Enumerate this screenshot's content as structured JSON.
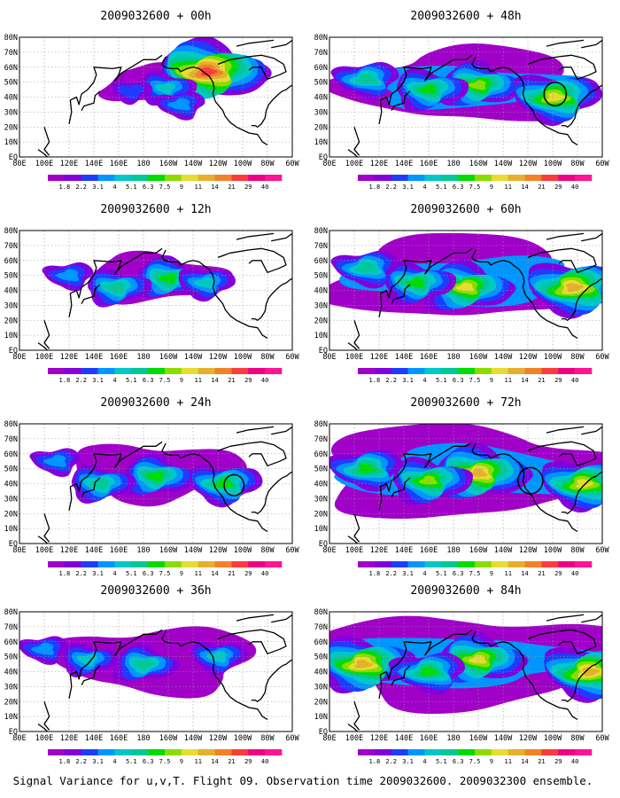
{
  "figure": {
    "caption": "Signal Variance for u,v,T. Flight 09. Observation time 2009032600. 2009032300 ensemble."
  },
  "colorbar": {
    "labels": [
      "1.8",
      "2.2",
      "3.1",
      "4",
      "5.1",
      "6.3",
      "7.5",
      "9",
      "11",
      "14",
      "21",
      "29",
      "40"
    ],
    "colors": [
      "#a000c8",
      "#8200dc",
      "#1e3cff",
      "#0096ff",
      "#00c8c8",
      "#00c896",
      "#00dc00",
      "#8cdc00",
      "#e6dc32",
      "#e6af2d",
      "#f08228",
      "#fa3c3c",
      "#f00082",
      "#ff1493"
    ]
  },
  "x_ticks": [
    "80E",
    "100E",
    "120E",
    "140E",
    "160E",
    "180",
    "160W",
    "140W",
    "120W",
    "100W",
    "80W",
    "60W"
  ],
  "y_ticks": [
    "80N",
    "70N",
    "60N",
    "50N",
    "40N",
    "30N",
    "20N",
    "10N",
    "EQ"
  ],
  "chart_data": [
    {
      "type": "heatmap",
      "title": "2009032600 + 00h",
      "valid_hour": 0,
      "xlim": [
        80,
        300
      ],
      "ylim": [
        0,
        80
      ],
      "regions": [
        {
          "lon": 232,
          "lat": 57,
          "level": 11
        },
        {
          "lon": 198,
          "lat": 46,
          "level": 4
        },
        {
          "lon": 170,
          "lat": 44,
          "level": 2
        },
        {
          "lon": 210,
          "lat": 35,
          "level": 3
        }
      ],
      "circles": []
    },
    {
      "type": "heatmap",
      "title": "2009032600 + 12h",
      "valid_hour": 12,
      "xlim": [
        80,
        300
      ],
      "ylim": [
        0,
        80
      ],
      "regions": [
        {
          "lon": 200,
          "lat": 48,
          "level": 6
        },
        {
          "lon": 158,
          "lat": 42,
          "level": 5
        },
        {
          "lon": 230,
          "lat": 45,
          "level": 4
        },
        {
          "lon": 120,
          "lat": 50,
          "level": 3
        }
      ],
      "circles": []
    },
    {
      "type": "heatmap",
      "title": "2009032600 + 24h",
      "valid_hour": 24,
      "xlim": [
        80,
        300
      ],
      "ylim": [
        0,
        80
      ],
      "regions": [
        {
          "lon": 190,
          "lat": 45,
          "level": 6
        },
        {
          "lon": 145,
          "lat": 40,
          "level": 5
        },
        {
          "lon": 245,
          "lat": 40,
          "level": 6
        },
        {
          "lon": 110,
          "lat": 55,
          "level": 3
        }
      ],
      "circles": [
        {
          "lon": 253,
          "lat": 39,
          "r_deg": 8
        }
      ]
    },
    {
      "type": "heatmap",
      "title": "2009032600 + 36h",
      "valid_hour": 36,
      "xlim": [
        80,
        300
      ],
      "ylim": [
        0,
        80
      ],
      "regions": [
        {
          "lon": 180,
          "lat": 45,
          "level": 5
        },
        {
          "lon": 135,
          "lat": 48,
          "level": 4
        },
        {
          "lon": 240,
          "lat": 50,
          "level": 4
        },
        {
          "lon": 100,
          "lat": 55,
          "level": 3
        }
      ],
      "circles": []
    },
    {
      "type": "heatmap",
      "title": "2009032600 + 48h",
      "valid_hour": 48,
      "xlim": [
        80,
        300
      ],
      "ylim": [
        0,
        80
      ],
      "regions": [
        {
          "lon": 200,
          "lat": 48,
          "level": 7
        },
        {
          "lon": 160,
          "lat": 45,
          "level": 6
        },
        {
          "lon": 262,
          "lat": 40,
          "level": 8
        },
        {
          "lon": 110,
          "lat": 52,
          "level": 5
        }
      ],
      "circles": [
        {
          "lon": 262,
          "lat": 42,
          "r_deg": 9
        }
      ]
    },
    {
      "type": "heatmap",
      "title": "2009032600 + 60h",
      "valid_hour": 60,
      "xlim": [
        80,
        300
      ],
      "ylim": [
        0,
        80
      ],
      "regions": [
        {
          "lon": 190,
          "lat": 42,
          "level": 8
        },
        {
          "lon": 150,
          "lat": 45,
          "level": 6
        },
        {
          "lon": 277,
          "lat": 42,
          "level": 9
        },
        {
          "lon": 110,
          "lat": 55,
          "level": 5
        }
      ],
      "circles": []
    },
    {
      "type": "heatmap",
      "title": "2009032600 + 72h",
      "valid_hour": 72,
      "xlim": [
        80,
        300
      ],
      "ylim": [
        0,
        80
      ],
      "regions": [
        {
          "lon": 200,
          "lat": 47,
          "level": 9
        },
        {
          "lon": 160,
          "lat": 42,
          "level": 7
        },
        {
          "lon": 285,
          "lat": 40,
          "level": 8
        },
        {
          "lon": 110,
          "lat": 50,
          "level": 6
        }
      ],
      "circles": [
        {
          "lon": 242,
          "lat": 42,
          "r_deg": 10
        }
      ]
    },
    {
      "type": "heatmap",
      "title": "2009032600 + 84h",
      "valid_hour": 84,
      "xlim": [
        80,
        300
      ],
      "ylim": [
        0,
        80
      ],
      "regions": [
        {
          "lon": 200,
          "lat": 48,
          "level": 8
        },
        {
          "lon": 107,
          "lat": 45,
          "level": 9
        },
        {
          "lon": 290,
          "lat": 40,
          "level": 9
        },
        {
          "lon": 160,
          "lat": 40,
          "level": 6
        }
      ],
      "circles": []
    }
  ]
}
